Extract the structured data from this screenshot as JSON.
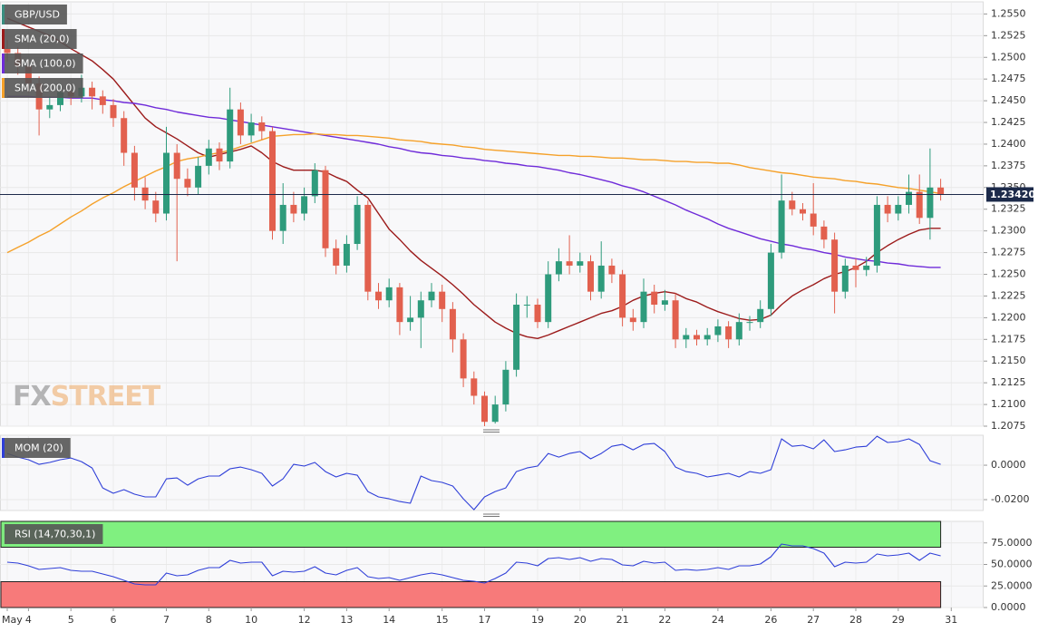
{
  "chart_data": [
    {
      "type": "candlestick",
      "symbol": "GBP/USD",
      "categories": [
        "May",
        null,
        "4",
        null,
        null,
        null,
        "5",
        null,
        null,
        null,
        "6",
        null,
        null,
        null,
        null,
        "7",
        null,
        null,
        null,
        "8",
        null,
        null,
        null,
        "10",
        null,
        null,
        null,
        null,
        "12",
        null,
        null,
        null,
        "13",
        null,
        null,
        null,
        "14",
        null,
        null,
        null,
        null,
        "15",
        null,
        null,
        null,
        "17",
        null,
        null,
        null,
        null,
        "19",
        null,
        null,
        null,
        "20",
        null,
        null,
        null,
        "21",
        null,
        null,
        null,
        "22",
        null,
        null,
        null,
        null,
        "24",
        null,
        null,
        null,
        null,
        "26",
        null,
        null,
        null,
        "27",
        null,
        null,
        null,
        "28",
        null,
        null,
        null,
        "29",
        null,
        null,
        null,
        null,
        "31"
      ],
      "open": [
        1.251,
        1.2505,
        1.249,
        1.247,
        1.244,
        1.2445,
        1.246,
        1.2455,
        1.2465,
        1.2455,
        1.2445,
        1.243,
        1.239,
        1.235,
        1.2335,
        1.232,
        1.239,
        1.236,
        1.235,
        1.2375,
        1.2395,
        1.238,
        1.244,
        1.241,
        1.2425,
        1.2415,
        1.23,
        1.233,
        1.232,
        1.234,
        1.237,
        1.228,
        1.226,
        1.2285,
        1.233,
        1.223,
        1.222,
        1.2235,
        1.2195,
        1.22,
        1.222,
        1.223,
        1.221,
        1.2175,
        1.213,
        1.211,
        1.208,
        1.21,
        1.214,
        1.2215,
        1.2215,
        1.2195,
        1.225,
        1.2265,
        1.226,
        1.2265,
        1.223,
        1.226,
        1.225,
        1.22,
        1.2195,
        1.223,
        1.2215,
        1.222,
        1.2175,
        1.218,
        1.2175,
        1.218,
        1.219,
        1.2175,
        1.2195,
        1.2195,
        1.221,
        1.2275,
        1.2335,
        1.2325,
        1.232,
        1.2305,
        1.229,
        1.223,
        1.226,
        1.2255,
        1.226,
        1.233,
        1.232,
        1.233,
        1.2345,
        1.2315,
        1.235,
        null
      ],
      "high": [
        1.252,
        1.2512,
        1.2498,
        1.2478,
        1.2455,
        1.247,
        1.2468,
        1.248,
        1.2472,
        1.2462,
        1.2452,
        1.2438,
        1.2398,
        1.2362,
        1.2345,
        1.242,
        1.24,
        1.2372,
        1.2385,
        1.2405,
        1.2402,
        1.2465,
        1.2448,
        1.2435,
        1.2432,
        1.242,
        1.2355,
        1.2345,
        1.235,
        1.2378,
        1.2375,
        1.229,
        1.2295,
        1.234,
        1.2335,
        1.224,
        1.2245,
        1.224,
        1.2225,
        1.223,
        1.224,
        1.2238,
        1.2218,
        1.2182,
        1.2138,
        1.2115,
        1.211,
        1.215,
        1.2228,
        1.2225,
        1.2222,
        1.2265,
        1.228,
        1.2295,
        1.2275,
        1.2272,
        1.2288,
        1.2268,
        1.2255,
        1.221,
        1.2245,
        1.2238,
        1.2232,
        1.2228,
        1.2188,
        1.2186,
        1.2188,
        1.2198,
        1.2196,
        1.2205,
        1.2202,
        1.222,
        1.2285,
        1.2365,
        1.2345,
        1.2332,
        1.2355,
        1.2312,
        1.2298,
        1.2268,
        1.2268,
        1.227,
        1.234,
        1.234,
        1.234,
        1.2365,
        1.2365,
        1.2395,
        1.236,
        null
      ],
      "low": [
        1.2495,
        1.248,
        1.246,
        1.241,
        1.243,
        1.2438,
        1.2445,
        1.2448,
        1.244,
        1.2435,
        1.242,
        1.2375,
        1.2335,
        1.2325,
        1.231,
        1.2312,
        1.2265,
        1.234,
        1.2342,
        1.2365,
        1.237,
        1.2372,
        1.24,
        1.2402,
        1.2405,
        1.229,
        1.2285,
        1.231,
        1.2312,
        1.2332,
        1.227,
        1.225,
        1.2252,
        1.2278,
        1.222,
        1.221,
        1.2212,
        1.218,
        1.2185,
        1.2165,
        1.2212,
        1.2195,
        1.216,
        1.212,
        1.21,
        1.2075,
        1.2078,
        1.2092,
        1.2132,
        1.22,
        1.2188,
        1.2188,
        1.2242,
        1.225,
        1.2252,
        1.222,
        1.2222,
        1.224,
        1.219,
        1.2185,
        1.2188,
        1.2205,
        1.2208,
        1.2165,
        1.2165,
        1.2168,
        1.2168,
        1.2172,
        1.2165,
        1.2168,
        1.2185,
        1.2188,
        1.2202,
        1.2268,
        1.2318,
        1.2312,
        1.2295,
        1.228,
        1.2205,
        1.2222,
        1.2235,
        1.2248,
        1.2252,
        1.231,
        1.2312,
        1.232,
        1.2308,
        1.229,
        1.2335,
        null
      ],
      "close": [
        1.2505,
        1.249,
        1.247,
        1.244,
        1.2445,
        1.246,
        1.2455,
        1.2465,
        1.2455,
        1.2445,
        1.243,
        1.239,
        1.235,
        1.2335,
        1.232,
        1.239,
        1.236,
        1.235,
        1.2375,
        1.2395,
        1.238,
        1.244,
        1.241,
        1.2425,
        1.2415,
        1.23,
        1.233,
        1.232,
        1.234,
        1.237,
        1.228,
        1.226,
        1.2285,
        1.233,
        1.223,
        1.222,
        1.2235,
        1.2195,
        1.22,
        1.222,
        1.223,
        1.221,
        1.2175,
        1.213,
        1.211,
        1.208,
        1.21,
        1.214,
        1.2215,
        1.2215,
        1.2195,
        1.225,
        1.2265,
        1.226,
        1.2265,
        1.223,
        1.226,
        1.225,
        1.22,
        1.2195,
        1.223,
        1.2215,
        1.222,
        1.2175,
        1.218,
        1.2175,
        1.218,
        1.219,
        1.2175,
        1.2195,
        1.2195,
        1.221,
        1.2275,
        1.2335,
        1.2325,
        1.232,
        1.2305,
        1.229,
        1.223,
        1.226,
        1.2255,
        1.226,
        1.233,
        1.232,
        1.233,
        1.2345,
        1.2315,
        1.235,
        1.2342,
        null
      ],
      "up_color": "#2e9b7c",
      "down_color": "#e2604e",
      "symbol_color": "#3a8f80",
      "series": [
        {
          "name": "SMA (20,0)",
          "color": "#9c1b1b",
          "values": [
            1.2545,
            1.254,
            1.2535,
            1.253,
            1.2525,
            1.2518,
            1.251,
            1.2503,
            1.2496,
            1.2486,
            1.2475,
            1.246,
            1.2445,
            1.243,
            1.242,
            1.2413,
            1.2406,
            1.2398,
            1.239,
            1.2385,
            1.2388,
            1.2391,
            1.2394,
            1.2398,
            1.239,
            1.238,
            1.2374,
            1.237,
            1.237,
            1.237,
            1.2368,
            1.2362,
            1.2357,
            1.2347,
            1.2338,
            1.232,
            1.2302,
            1.229,
            1.2277,
            1.2266,
            1.2257,
            1.2248,
            1.2238,
            1.2227,
            1.2215,
            1.2205,
            1.2195,
            1.2188,
            1.2182,
            1.2178,
            1.2176,
            1.218,
            1.2185,
            1.219,
            1.2195,
            1.22,
            1.2205,
            1.2208,
            1.2213,
            1.222,
            1.2225,
            1.2228,
            1.223,
            1.2228,
            1.2222,
            1.2218,
            1.2212,
            1.2207,
            1.2203,
            1.2199,
            1.2197,
            1.2198,
            1.2203,
            1.2215,
            1.2225,
            1.2232,
            1.2238,
            1.2245,
            1.225,
            1.2253,
            1.2258,
            1.2265,
            1.2275,
            1.2283,
            1.229,
            1.2296,
            1.2301,
            1.2303,
            1.2303,
            null
          ]
        },
        {
          "name": "SMA (100,0)",
          "color": "#6f2bd9",
          "values": [
            1.2455,
            1.2455,
            1.2455,
            1.2454,
            1.2454,
            1.2454,
            1.2453,
            1.2453,
            1.2453,
            1.2451,
            1.245,
            1.2448,
            1.2447,
            1.2445,
            1.2442,
            1.244,
            1.2437,
            1.2435,
            1.2433,
            1.2431,
            1.243,
            1.2428,
            1.2426,
            1.2424,
            1.2422,
            1.242,
            1.2418,
            1.2416,
            1.2414,
            1.2412,
            1.241,
            1.2408,
            1.2406,
            1.2404,
            1.2402,
            1.24,
            1.2397,
            1.2395,
            1.2392,
            1.239,
            1.2389,
            1.2387,
            1.2386,
            1.2384,
            1.2383,
            1.2381,
            1.238,
            1.2378,
            1.2377,
            1.2375,
            1.2374,
            1.2372,
            1.237,
            1.2367,
            1.2365,
            1.2362,
            1.2359,
            1.2356,
            1.2352,
            1.2349,
            1.2345,
            1.234,
            1.2335,
            1.233,
            1.2324,
            1.2319,
            1.2314,
            1.2308,
            1.2303,
            1.2299,
            1.2295,
            1.2291,
            1.2288,
            1.2285,
            1.2283,
            1.228,
            1.2278,
            1.2275,
            1.2273,
            1.227,
            1.2268,
            1.2266,
            1.2265,
            1.2263,
            1.2262,
            1.226,
            1.2259,
            1.2258,
            1.2258,
            null
          ]
        },
        {
          "name": "SMA (200,0)",
          "color": "#f5a12a",
          "values": [
            1.2275,
            1.2281,
            1.2287,
            1.2294,
            1.23,
            1.2308,
            1.2316,
            1.2323,
            1.2331,
            1.2338,
            1.2344,
            1.2351,
            1.2357,
            1.2363,
            1.2369,
            1.2374,
            1.238,
            1.2383,
            1.2385,
            1.2388,
            1.239,
            1.2393,
            1.2397,
            1.2401,
            1.2405,
            1.2409,
            1.241,
            1.2411,
            1.2411,
            1.2412,
            1.2411,
            1.2411,
            1.241,
            1.241,
            1.2409,
            1.2408,
            1.2407,
            1.2405,
            1.2404,
            1.2403,
            1.2401,
            1.24,
            1.2399,
            1.2397,
            1.2396,
            1.2394,
            1.2393,
            1.2392,
            1.2391,
            1.239,
            1.2389,
            1.2388,
            1.2387,
            1.2387,
            1.2386,
            1.2386,
            1.2385,
            1.2384,
            1.2384,
            1.2383,
            1.2382,
            1.2382,
            1.2381,
            1.238,
            1.238,
            1.2379,
            1.2379,
            1.2378,
            1.2378,
            1.2376,
            1.2373,
            1.2371,
            1.2369,
            1.2367,
            1.2366,
            1.2364,
            1.2362,
            1.2361,
            1.236,
            1.2358,
            1.2357,
            1.2355,
            1.2354,
            1.2352,
            1.235,
            1.2349,
            1.2347,
            1.2345,
            1.2343,
            null
          ]
        }
      ],
      "last_price": {
        "value": 1.2342,
        "label": "1.23420"
      },
      "last_price_color": "#1c2a4a",
      "watermark": [
        "FX",
        "STREET"
      ],
      "ylim": [
        1.2075,
        1.2564
      ],
      "yticks": [
        {
          "value": 1.2075,
          "label": "1.2075"
        },
        {
          "value": 1.21,
          "label": "1.2100"
        },
        {
          "value": 1.2125,
          "label": "1.2125"
        },
        {
          "value": 1.215,
          "label": "1.2150"
        },
        {
          "value": 1.2175,
          "label": "1.2175"
        },
        {
          "value": 1.22,
          "label": "1.2200"
        },
        {
          "value": 1.2225,
          "label": "1.2225"
        },
        {
          "value": 1.225,
          "label": "1.2250"
        },
        {
          "value": 1.2275,
          "label": "1.2275"
        },
        {
          "value": 1.23,
          "label": "1.2300"
        },
        {
          "value": 1.2325,
          "label": "1.2325"
        },
        {
          "value": 1.235,
          "label": "1.2350"
        },
        {
          "value": 1.2375,
          "label": "1.2375"
        },
        {
          "value": 1.24,
          "label": "1.2400"
        },
        {
          "value": 1.2425,
          "label": "1.2425"
        },
        {
          "value": 1.245,
          "label": "1.2450"
        },
        {
          "value": 1.2475,
          "label": "1.2475"
        },
        {
          "value": 1.25,
          "label": "1.2500"
        },
        {
          "value": 1.2525,
          "label": "1.2525"
        },
        {
          "value": 1.255,
          "label": "1.2550"
        }
      ],
      "grid": true
    },
    {
      "type": "line",
      "series": [
        {
          "name": "MOM (20)",
          "color": "#2f3fd8",
          "values": [
            0.0068,
            0.0047,
            0.0032,
            0.0005,
            0.0016,
            0.0032,
            0.0042,
            0.0021,
            -0.0016,
            -0.0132,
            -0.0163,
            -0.0142,
            -0.0168,
            -0.0184,
            -0.0184,
            -0.0079,
            -0.0074,
            -0.0116,
            -0.0079,
            -0.0063,
            -0.0063,
            -0.0021,
            -0.0011,
            -0.0026,
            -0.0047,
            -0.0121,
            -0.0079,
            0.0005,
            -0.0005,
            0.0016,
            -0.0037,
            -0.0068,
            -0.0047,
            -0.0058,
            -0.0153,
            -0.0184,
            -0.0195,
            -0.0211,
            -0.0221,
            -0.0063,
            -0.0089,
            -0.01,
            -0.0121,
            -0.0195,
            -0.0258,
            -0.0184,
            -0.0153,
            -0.0132,
            -0.0037,
            -0.0016,
            -0.0005,
            0.0068,
            0.0047,
            0.0068,
            0.0079,
            0.0037,
            0.0068,
            0.011,
            0.0121,
            0.0089,
            0.0121,
            0.0126,
            0.0079,
            -0.0011,
            -0.0037,
            -0.0047,
            -0.0068,
            -0.0058,
            -0.0047,
            -0.0068,
            -0.0037,
            -0.0047,
            -0.0026,
            0.0153,
            0.011,
            0.0116,
            0.0095,
            0.0147,
            0.0079,
            0.0089,
            0.0105,
            0.011,
            0.0168,
            0.0132,
            0.0137,
            0.0153,
            0.0121,
            0.0026,
            0.0005,
            null
          ]
        }
      ],
      "ylim": [
        -0.0263,
        0.0174
      ],
      "yticks": [
        {
          "value": 0,
          "label": "0.0000"
        },
        {
          "value": -0.02,
          "label": "-0.0200"
        }
      ],
      "grid": true
    },
    {
      "type": "line",
      "series": [
        {
          "name": "RSI (14,70,30,1)",
          "color": "#2f3fd8",
          "label_color": "#7ee87e",
          "values": [
            52.6,
            51.6,
            48.4,
            44.2,
            45.3,
            46.3,
            43.2,
            42.1,
            42.1,
            38.9,
            35.8,
            31.6,
            27.4,
            26.3,
            26.3,
            40.0,
            36.8,
            37.9,
            43.2,
            46.3,
            46.3,
            54.7,
            51.6,
            52.6,
            52.6,
            36.8,
            42.1,
            41.1,
            42.1,
            47.4,
            40.0,
            37.9,
            43.2,
            46.3,
            35.8,
            33.7,
            34.7,
            31.6,
            34.7,
            37.9,
            40.0,
            37.9,
            34.7,
            31.6,
            30.5,
            28.4,
            33.7,
            40.0,
            52.6,
            51.6,
            48.4,
            56.8,
            57.9,
            55.8,
            57.9,
            53.7,
            56.8,
            55.8,
            49.5,
            48.4,
            53.7,
            51.6,
            52.6,
            43.2,
            44.2,
            43.2,
            44.2,
            46.3,
            44.2,
            48.4,
            48.4,
            50.5,
            58.9,
            73.7,
            71.6,
            71.6,
            68.4,
            63.2,
            47.4,
            52.6,
            51.6,
            52.6,
            62.1,
            60.0,
            61.1,
            63.2,
            54.7,
            63.2,
            60.0,
            null
          ]
        }
      ],
      "bands": [
        {
          "from": 70,
          "to": 100,
          "color": "#80f080"
        },
        {
          "from": 0,
          "to": 30,
          "color": "#f77a7a"
        }
      ],
      "ylim": [
        0,
        100
      ],
      "yticks": [
        {
          "value": 75,
          "label": "75.0000"
        },
        {
          "value": 50,
          "label": "50.0000"
        },
        {
          "value": 25,
          "label": "25.0000"
        },
        {
          "value": 0,
          "label": "0.0000"
        }
      ],
      "grid": true
    }
  ]
}
